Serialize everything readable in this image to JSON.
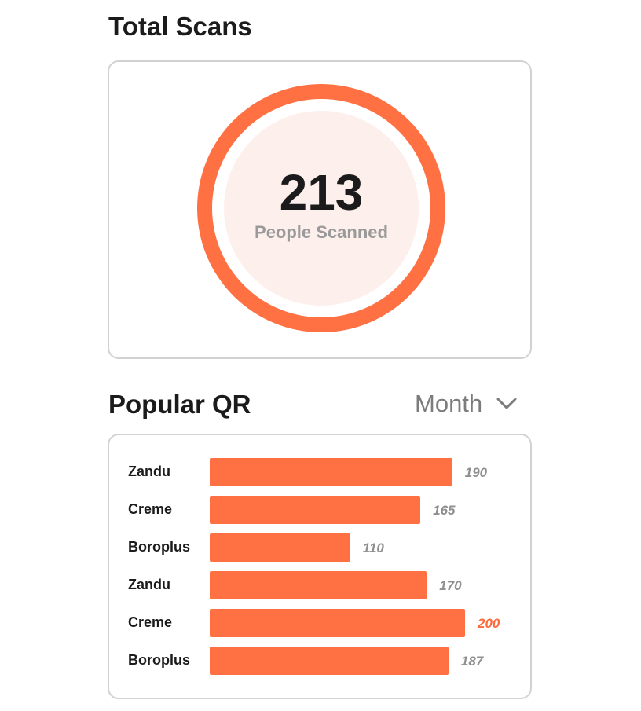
{
  "total_scans": {
    "title": "Total Scans",
    "value": "213",
    "label": "People Scanned"
  },
  "popular_qr": {
    "title": "Popular QR",
    "period": "Month",
    "period_icon": "chevron-down-icon"
  },
  "colors": {
    "accent": "#ff7043",
    "accent_highlight": "#ff6a3c",
    "ring_fill": "#fdefeb"
  },
  "chart_data": {
    "type": "bar",
    "orientation": "horizontal",
    "categories": [
      "Zandu",
      "Creme",
      "Boroplus",
      "Zandu",
      "Creme",
      "Boroplus"
    ],
    "values": [
      190,
      165,
      110,
      170,
      200,
      187
    ],
    "value_labels": [
      "190",
      "165",
      "110",
      "170",
      "200",
      "187"
    ],
    "xlim": [
      0,
      200
    ],
    "grid": false,
    "highlight_max": true
  }
}
